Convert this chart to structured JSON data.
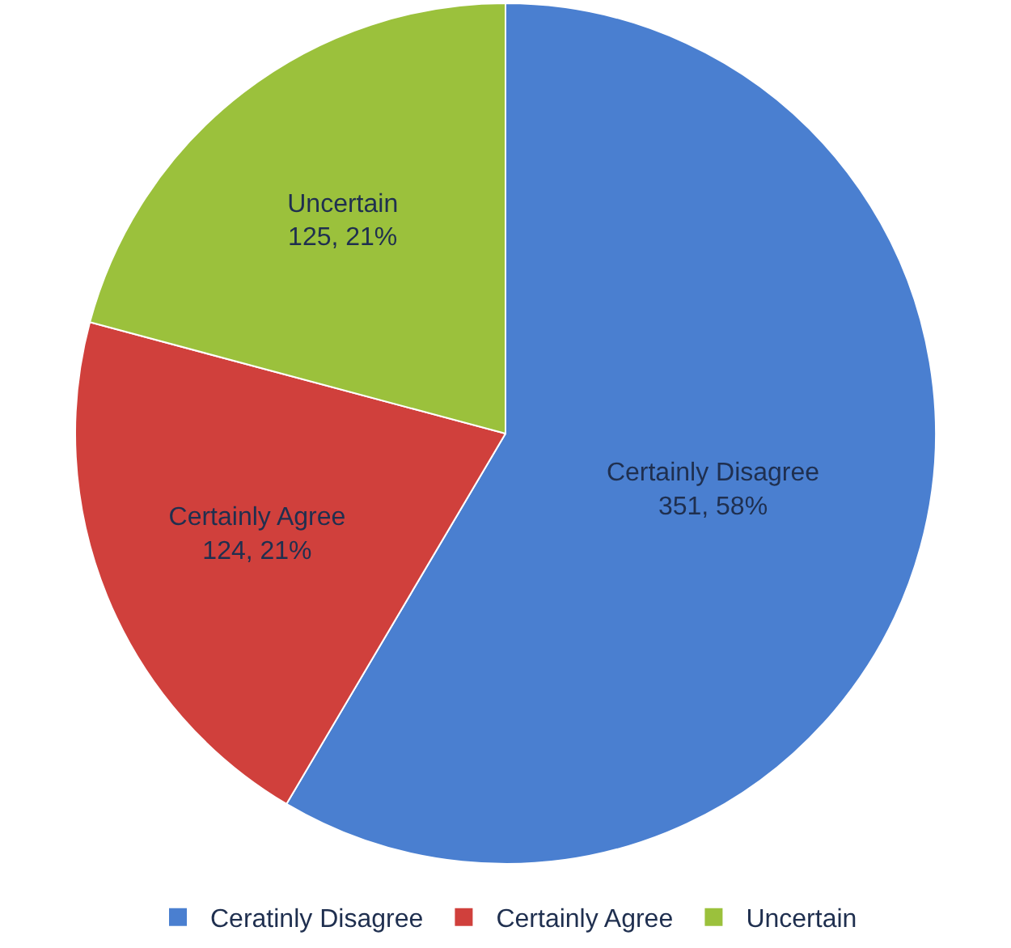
{
  "chart_data": {
    "type": "pie",
    "categories": [
      "Ceratinly Disagree",
      "Certainly Agree",
      "Uncertain"
    ],
    "values": [
      351,
      124,
      125
    ],
    "colors": [
      "#4a7fd0",
      "#d0403c",
      "#9bc13c"
    ],
    "value_labels": [
      "Certainly Disagree\n351, 58%",
      "Certainly Agree\n124, 21%",
      "Uncertain\n125, 21%"
    ],
    "legend": "bottom"
  }
}
